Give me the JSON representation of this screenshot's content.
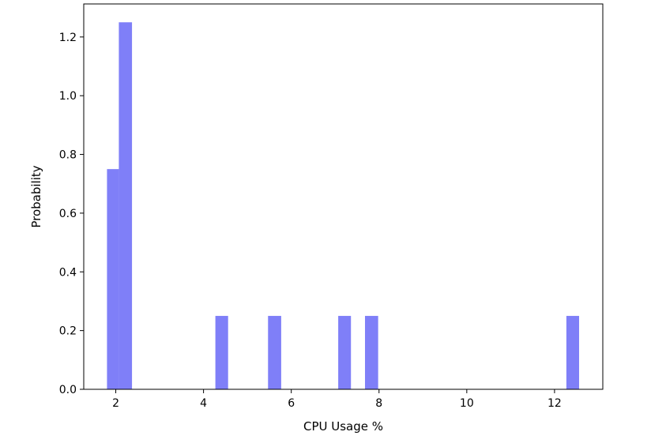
{
  "chart_data": {
    "type": "bar",
    "title": "",
    "xlabel": "CPU Usage %",
    "ylabel": "Probability",
    "xlim": [
      1.27,
      13.1
    ],
    "ylim": [
      0,
      1.3125
    ],
    "xticks": [
      2,
      4,
      6,
      8,
      10,
      12
    ],
    "yticks": [
      0.0,
      0.2,
      0.4,
      0.6,
      0.8,
      1.0,
      1.2
    ],
    "bar_color": "#7f7ff8",
    "grid": false,
    "legend": "none",
    "bins": [
      {
        "x0": 1.8,
        "x1": 2.07,
        "value": 0.75
      },
      {
        "x0": 2.07,
        "x1": 2.37,
        "value": 1.25
      },
      {
        "x0": 4.27,
        "x1": 4.56,
        "value": 0.25
      },
      {
        "x0": 5.47,
        "x1": 5.77,
        "value": 0.25
      },
      {
        "x0": 7.07,
        "x1": 7.36,
        "value": 0.25
      },
      {
        "x0": 7.68,
        "x1": 7.98,
        "value": 0.25
      },
      {
        "x0": 12.27,
        "x1": 12.56,
        "value": 0.25
      }
    ]
  }
}
